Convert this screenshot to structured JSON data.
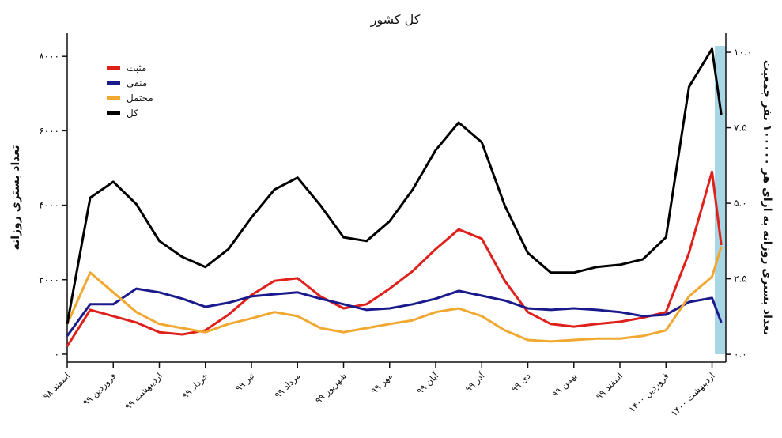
{
  "chart_data": {
    "type": "line",
    "title": "کل کشور",
    "y_label": "تعداد بستری روزانه",
    "y2_label": "تعداد بستری روزانه به ازای هر ۱۰۰۰۰۰ نفر جمعیت",
    "x": [
      0,
      0.5,
      1,
      1.5,
      2,
      2.5,
      3,
      3.5,
      4,
      4.5,
      5,
      5.5,
      6,
      6.5,
      7,
      7.5,
      8,
      8.5,
      9,
      9.5,
      10,
      10.5,
      11,
      11.5,
      12,
      12.5,
      13,
      13.5,
      14,
      14.2
    ],
    "xlim": [
      0,
      14.3
    ],
    "xticks": [
      {
        "value": 0,
        "label": "اسفند ۹۸"
      },
      {
        "value": 1,
        "label": "فروردین ۹۹"
      },
      {
        "value": 2,
        "label": "اردیبهشت ۹۹"
      },
      {
        "value": 3,
        "label": "خرداد ۹۹"
      },
      {
        "value": 4,
        "label": "تیر ۹۹"
      },
      {
        "value": 5,
        "label": "مرداد ۹۹"
      },
      {
        "value": 6,
        "label": "شهریور ۹۹"
      },
      {
        "value": 7,
        "label": "مهر ۹۹"
      },
      {
        "value": 8,
        "label": "آبان ۹۹"
      },
      {
        "value": 9,
        "label": "آذر ۹۹"
      },
      {
        "value": 10,
        "label": "دی ۹۹"
      },
      {
        "value": 11,
        "label": "بهمن ۹۹"
      },
      {
        "value": 12,
        "label": "اسفند ۹۹"
      },
      {
        "value": 13,
        "label": "فروردین ۱۴۰۰"
      },
      {
        "value": 14,
        "label": "اردیبهشت ۱۴۰۰"
      }
    ],
    "ylim": [
      -150,
      8620
    ],
    "yticks": [
      {
        "value": 0,
        "label": "۰"
      },
      {
        "value": 2000,
        "label": "۲۰۰۰"
      },
      {
        "value": 4000,
        "label": "۴۰۰۰"
      },
      {
        "value": 6000,
        "label": "۶۰۰۰"
      },
      {
        "value": 8000,
        "label": "۸۰۰۰"
      }
    ],
    "y2lim": [
      -0.18,
      10.63
    ],
    "y2ticks": [
      {
        "value": 0,
        "label": "۰.۰"
      },
      {
        "value": 2.5,
        "label": "۲.۵"
      },
      {
        "value": 5,
        "label": "۵.۰"
      },
      {
        "value": 7.5,
        "label": "۷.۵"
      },
      {
        "value": 10,
        "label": "۱۰.۰"
      }
    ],
    "legend": "top-left",
    "series": [
      {
        "name": "مثبت",
        "color": "#e0201b",
        "values": [
          210,
          1190,
          1020,
          850,
          590,
          530,
          640,
          1060,
          1590,
          1970,
          2040,
          1550,
          1230,
          1340,
          1760,
          2230,
          2820,
          3350,
          3100,
          1970,
          1130,
          810,
          740,
          810,
          870,
          980,
          1130,
          2720,
          4900,
          2930
        ]
      },
      {
        "name": "منفی",
        "color": "#1a1a8c",
        "values": [
          490,
          1340,
          1340,
          1760,
          1660,
          1490,
          1270,
          1380,
          1550,
          1610,
          1660,
          1490,
          1340,
          1190,
          1230,
          1340,
          1490,
          1700,
          1570,
          1440,
          1230,
          1190,
          1230,
          1190,
          1130,
          1020,
          1060,
          1400,
          1510,
          850
        ]
      },
      {
        "name": "محتمل",
        "color": "#f0a830",
        "values": [
          810,
          2190,
          1660,
          1130,
          810,
          700,
          590,
          810,
          960,
          1130,
          1020,
          700,
          590,
          700,
          810,
          910,
          1130,
          1230,
          1020,
          640,
          380,
          340,
          380,
          420,
          420,
          490,
          640,
          1550,
          2080,
          2890
        ]
      },
      {
        "name": "کل",
        "color": "#000000",
        "values": [
          810,
          4200,
          4630,
          4030,
          3040,
          2610,
          2340,
          2820,
          3670,
          4420,
          4740,
          3990,
          3140,
          3040,
          3570,
          4420,
          5480,
          6220,
          5690,
          3990,
          2720,
          2190,
          2190,
          2340,
          2400,
          2550,
          3140,
          7180,
          8200,
          6430
        ]
      }
    ]
  }
}
